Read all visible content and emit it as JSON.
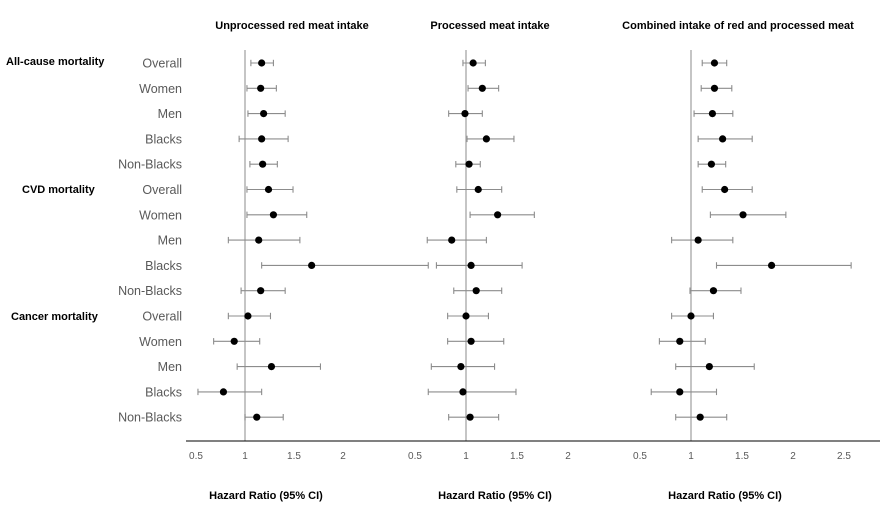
{
  "chart_data": {
    "type": "forest",
    "reference_line": 1,
    "x_ticks": [
      0.5,
      1,
      1.5,
      2
    ],
    "x_ticks_panel3": [
      0.5,
      1,
      1.5,
      2,
      2.5
    ],
    "groups": [
      {
        "label": "All-cause mortality",
        "rows": [
          "Overall",
          "Women",
          "Men",
          "Blacks",
          "Non-Blacks"
        ]
      },
      {
        "label": "CVD mortality",
        "rows": [
          "Overall",
          "Women",
          "Men",
          "Blacks",
          "Non-Blacks"
        ]
      },
      {
        "label": "Cancer mortality",
        "rows": [
          "Overall",
          "Women",
          "Men",
          "Blacks",
          "Non-Blacks"
        ]
      }
    ],
    "panels": [
      {
        "title": "Unprocessed red meat intake",
        "xlabel": "Hazard Ratio (95% CI)",
        "hr": [
          1.17,
          1.16,
          1.19,
          1.17,
          1.18,
          1.24,
          1.29,
          1.14,
          1.68,
          1.16,
          1.03,
          0.89,
          1.27,
          0.78,
          1.12
        ],
        "lower": [
          1.06,
          1.02,
          1.03,
          0.94,
          1.05,
          1.02,
          1.02,
          0.83,
          1.17,
          0.96,
          0.83,
          0.68,
          0.92,
          0.52,
          1.0
        ],
        "upper": [
          1.29,
          1.32,
          1.41,
          1.44,
          1.33,
          1.49,
          1.63,
          1.56,
          2.87,
          1.41,
          1.26,
          1.15,
          1.77,
          1.17,
          1.39
        ]
      },
      {
        "title": "Processed meat intake",
        "xlabel": "Hazard Ratio (95% CI)",
        "hr": [
          1.07,
          1.16,
          0.99,
          1.2,
          1.03,
          1.12,
          1.31,
          0.86,
          1.05,
          1.1,
          1.0,
          1.05,
          0.95,
          0.97,
          1.04
        ],
        "lower": [
          0.97,
          1.02,
          0.83,
          1.01,
          0.9,
          0.91,
          1.04,
          0.62,
          0.71,
          0.88,
          0.82,
          0.82,
          0.66,
          0.63,
          0.83
        ],
        "upper": [
          1.19,
          1.32,
          1.16,
          1.47,
          1.14,
          1.35,
          1.67,
          1.2,
          1.55,
          1.35,
          1.22,
          1.37,
          1.28,
          1.49,
          1.32
        ]
      },
      {
        "title": "Combined intake of red and processed meat",
        "xlabel": "Hazard Ratio (95% CI)",
        "hr": [
          1.23,
          1.23,
          1.21,
          1.31,
          1.2,
          1.33,
          1.51,
          1.07,
          1.79,
          1.22,
          1.0,
          0.89,
          1.18,
          0.89,
          1.09
        ],
        "lower": [
          1.11,
          1.1,
          1.03,
          1.07,
          1.07,
          1.11,
          1.19,
          0.81,
          1.25,
          0.99,
          0.81,
          0.69,
          0.85,
          0.61,
          0.85
        ],
        "upper": [
          1.35,
          1.4,
          1.41,
          1.6,
          1.34,
          1.6,
          1.93,
          1.41,
          2.57,
          1.49,
          1.22,
          1.14,
          1.62,
          1.25,
          1.35
        ]
      }
    ]
  }
}
